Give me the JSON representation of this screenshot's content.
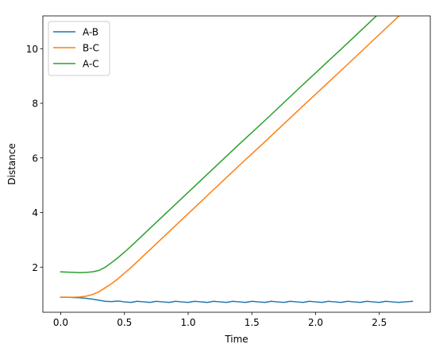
{
  "chart_data": {
    "type": "line",
    "xlabel": "Time",
    "ylabel": "Distance",
    "xlim": [
      -0.14,
      2.9
    ],
    "ylim": [
      0.35,
      11.2
    ],
    "xticks": [
      0.0,
      0.5,
      1.0,
      1.5,
      2.0,
      2.5
    ],
    "xtick_labels": [
      "0.0",
      "0.5",
      "1.0",
      "1.5",
      "2.0",
      "2.5"
    ],
    "yticks": [
      2,
      4,
      6,
      8,
      10
    ],
    "ytick_labels": [
      "2",
      "4",
      "6",
      "8",
      "10"
    ],
    "grid": false,
    "legend_position": "upper-left",
    "series": [
      {
        "name": "A-B",
        "color": "#1f77b4",
        "x": [
          0.0,
          0.05,
          0.1,
          0.15,
          0.2,
          0.25,
          0.3,
          0.35,
          0.4,
          0.45,
          0.5,
          0.55,
          0.6,
          0.65,
          0.7,
          0.75,
          0.8,
          0.85,
          0.9,
          0.95,
          1.0,
          1.05,
          1.1,
          1.15,
          1.2,
          1.25,
          1.3,
          1.35,
          1.4,
          1.45,
          1.5,
          1.55,
          1.6,
          1.65,
          1.7,
          1.75,
          1.8,
          1.85,
          1.9,
          1.95,
          2.0,
          2.05,
          2.1,
          2.15,
          2.2,
          2.25,
          2.3,
          2.35,
          2.4,
          2.45,
          2.5,
          2.55,
          2.6,
          2.65,
          2.7,
          2.76
        ],
        "y": [
          0.9,
          0.9,
          0.89,
          0.88,
          0.86,
          0.83,
          0.79,
          0.75,
          0.74,
          0.76,
          0.73,
          0.71,
          0.75,
          0.73,
          0.71,
          0.75,
          0.73,
          0.71,
          0.75,
          0.73,
          0.71,
          0.75,
          0.73,
          0.71,
          0.75,
          0.73,
          0.71,
          0.75,
          0.73,
          0.71,
          0.75,
          0.73,
          0.71,
          0.75,
          0.73,
          0.71,
          0.75,
          0.73,
          0.71,
          0.75,
          0.73,
          0.71,
          0.75,
          0.73,
          0.71,
          0.75,
          0.73,
          0.71,
          0.75,
          0.73,
          0.71,
          0.75,
          0.73,
          0.71,
          0.73,
          0.75
        ]
      },
      {
        "name": "B-C",
        "color": "#ff7f0e",
        "x": [
          0.0,
          0.05,
          0.1,
          0.15,
          0.2,
          0.25,
          0.3,
          0.35,
          0.4,
          0.45,
          0.5,
          0.55,
          0.6,
          0.65,
          0.7,
          0.8,
          0.9,
          1.0,
          1.1,
          1.2,
          1.3,
          1.4,
          1.5,
          1.6,
          1.7,
          1.8,
          1.9,
          2.0,
          2.1,
          2.2,
          2.3,
          2.4,
          2.5,
          2.6,
          2.7,
          2.76
        ],
        "y": [
          0.9,
          0.9,
          0.9,
          0.91,
          0.94,
          1.0,
          1.1,
          1.25,
          1.4,
          1.58,
          1.78,
          1.98,
          2.2,
          2.42,
          2.64,
          3.08,
          3.52,
          3.96,
          4.4,
          4.84,
          5.28,
          5.72,
          6.15,
          6.58,
          7.02,
          7.46,
          7.9,
          8.33,
          8.77,
          9.2,
          9.64,
          10.08,
          10.52,
          10.96,
          11.4,
          11.66
        ]
      },
      {
        "name": "A-C",
        "color": "#2ca02c",
        "x": [
          0.0,
          0.05,
          0.1,
          0.15,
          0.2,
          0.25,
          0.3,
          0.35,
          0.4,
          0.45,
          0.5,
          0.55,
          0.6,
          0.65,
          0.7,
          0.8,
          0.9,
          1.0,
          1.1,
          1.2,
          1.3,
          1.4,
          1.5,
          1.6,
          1.7,
          1.8,
          1.9,
          2.0,
          2.1,
          2.2,
          2.3,
          2.4,
          2.5,
          2.6,
          2.7,
          2.76
        ],
        "y": [
          1.83,
          1.82,
          1.81,
          1.8,
          1.81,
          1.83,
          1.88,
          2.0,
          2.17,
          2.35,
          2.55,
          2.76,
          2.98,
          3.2,
          3.42,
          3.86,
          4.3,
          4.74,
          5.18,
          5.62,
          6.06,
          6.5,
          6.93,
          7.36,
          7.8,
          8.24,
          8.68,
          9.11,
          9.55,
          9.98,
          10.42,
          10.86,
          11.3,
          11.74,
          12.18,
          12.44
        ]
      }
    ]
  }
}
